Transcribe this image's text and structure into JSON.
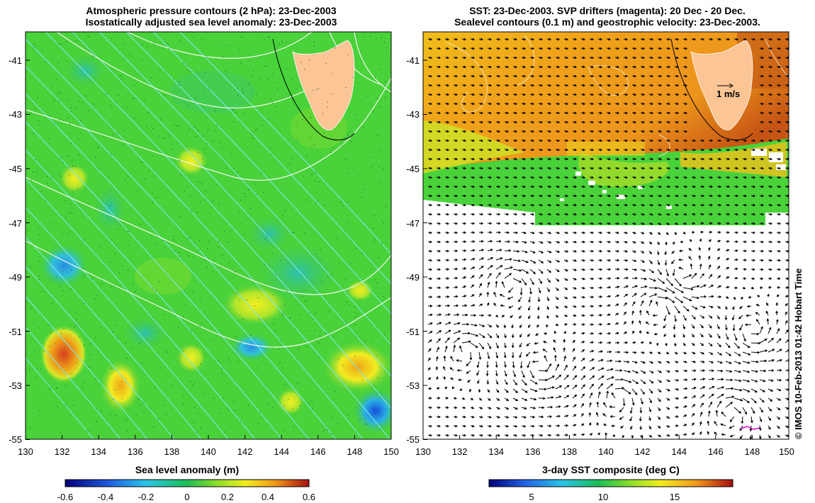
{
  "left_panel": {
    "title_line1": "Atmospheric pressure contours (2 hPa): 23-Dec-2003",
    "title_line2": "Isostatically adjusted sea level anomaly: 23-Dec-2003",
    "x_ticks": [
      "130",
      "132",
      "134",
      "136",
      "138",
      "140",
      "142",
      "144",
      "146",
      "148",
      "150"
    ],
    "y_ticks": [
      "-41",
      "-43",
      "-45",
      "-47",
      "-49",
      "-51",
      "-53",
      "-55"
    ],
    "colorbar_label": "Sea level anomaly (m)",
    "colorbar_ticks": [
      "-0.6",
      "-0.4",
      "-0.2",
      "0",
      "0.2",
      "0.4",
      "0.6"
    ]
  },
  "right_panel": {
    "title_line1": "SST: 23-Dec-2003. SVP drifters (magenta): 20 Dec - 20 Dec.",
    "title_line2": "Sealevel contours (0.1 m) and geostrophic velocity: 23-Dec-2003.",
    "x_ticks": [
      "130",
      "132",
      "134",
      "136",
      "138",
      "140",
      "142",
      "144",
      "146",
      "148",
      "150"
    ],
    "y_ticks": [
      "-41",
      "-43",
      "-45",
      "-47",
      "-49",
      "-51",
      "-53",
      "-55"
    ],
    "velocity_scale_label": "1 m/s",
    "colorbar_label": "3-day SST composite (deg C)",
    "colorbar_ticks": [
      "5",
      "10",
      "15"
    ]
  },
  "credit": "© IMOS 10-Feb-2013 01:42 Hobart Time",
  "colors": {
    "land": "#fbc595",
    "map_green": "#49d23a",
    "anomaly_high": "#e0471c",
    "anomaly_low": "#2fa3de",
    "sst_warm": "#ee9a1b",
    "drifter": "#d100d1"
  }
}
